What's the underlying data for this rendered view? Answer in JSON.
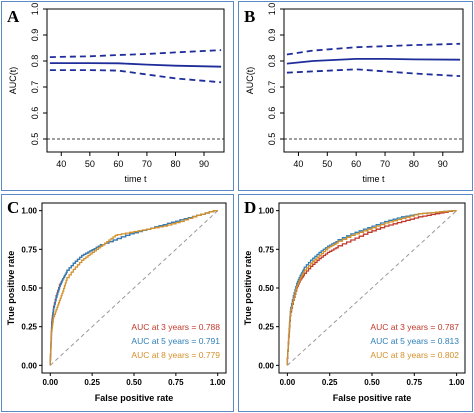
{
  "panels": [
    {
      "letter": "A",
      "type": "auc_time",
      "ylabel": "AUC(t)",
      "xlabel": "time t",
      "colors": {
        "line": "#1f2d9a",
        "ref": "#000000"
      }
    },
    {
      "letter": "B",
      "type": "auc_time",
      "ylabel": "AUC(t)",
      "xlabel": "time t",
      "colors": {
        "line": "#1f2d9a",
        "ref": "#000000"
      }
    },
    {
      "letter": "C",
      "type": "roc",
      "ylabel": "True positive rate",
      "xlabel": "False positive rate",
      "legend": [
        {
          "text": "AUC at 3 years = 0.788",
          "color": "#c0392b"
        },
        {
          "text": "AUC at 5 years = 0.791",
          "color": "#2e7fb8"
        },
        {
          "text": "AUC at 8 years = 0.779",
          "color": "#d4902a"
        }
      ]
    },
    {
      "letter": "D",
      "type": "roc",
      "ylabel": "True positive rate",
      "xlabel": "False positive rate",
      "legend": [
        {
          "text": "AUC at 3 years = 0.787",
          "color": "#c0392b"
        },
        {
          "text": "AUC at 5 years = 0.813",
          "color": "#2e7fb8"
        },
        {
          "text": "AUC at 8 years = 0.802",
          "color": "#d4902a"
        }
      ]
    }
  ],
  "chart_data": [
    {
      "type": "line",
      "panel": "A",
      "xlabel": "time t",
      "ylabel": "AUC(t)",
      "xlim": [
        35,
        97
      ],
      "ylim": [
        0.45,
        1.0
      ],
      "xticks": [
        40,
        50,
        60,
        70,
        80,
        90
      ],
      "yticks": [
        0.5,
        0.6,
        0.7,
        0.8,
        0.9,
        1.0
      ],
      "reference_line": 0.5,
      "series": [
        {
          "style": "solid",
          "x": [
            36,
            50,
            60,
            70,
            80,
            96
          ],
          "y": [
            0.792,
            0.792,
            0.791,
            0.786,
            0.782,
            0.778
          ]
        },
        {
          "style": "dashed",
          "x": [
            36,
            50,
            60,
            70,
            80,
            96
          ],
          "y": [
            0.815,
            0.818,
            0.823,
            0.827,
            0.833,
            0.842
          ]
        },
        {
          "style": "dashed",
          "x": [
            36,
            50,
            60,
            70,
            80,
            96
          ],
          "y": [
            0.765,
            0.765,
            0.763,
            0.748,
            0.733,
            0.718
          ]
        }
      ]
    },
    {
      "type": "line",
      "panel": "B",
      "xlabel": "time t",
      "ylabel": "AUC(t)",
      "xlim": [
        35,
        97
      ],
      "ylim": [
        0.45,
        1.0
      ],
      "xticks": [
        40,
        50,
        60,
        70,
        80,
        90
      ],
      "yticks": [
        0.5,
        0.6,
        0.7,
        0.8,
        0.9,
        1.0
      ],
      "reference_line": 0.5,
      "series": [
        {
          "style": "solid",
          "x": [
            36,
            45,
            60,
            70,
            80,
            96
          ],
          "y": [
            0.79,
            0.8,
            0.808,
            0.808,
            0.806,
            0.805
          ]
        },
        {
          "style": "dashed",
          "x": [
            36,
            45,
            60,
            70,
            80,
            96
          ],
          "y": [
            0.825,
            0.84,
            0.853,
            0.857,
            0.861,
            0.866
          ]
        },
        {
          "style": "dashed",
          "x": [
            36,
            45,
            60,
            70,
            80,
            96
          ],
          "y": [
            0.755,
            0.76,
            0.768,
            0.76,
            0.752,
            0.742
          ]
        }
      ]
    },
    {
      "type": "line",
      "panel": "C",
      "xlabel": "False positive rate",
      "ylabel": "True positive rate",
      "xlim": [
        0,
        1
      ],
      "ylim": [
        0,
        1
      ],
      "xticks": [
        0.0,
        0.25,
        0.5,
        0.75,
        1.0
      ],
      "yticks": [
        0.0,
        0.25,
        0.5,
        0.75,
        1.0
      ],
      "tick_labels": [
        "0.00",
        "0.25",
        "0.50",
        "0.75",
        "1.00"
      ],
      "diagonal": true,
      "series": [
        {
          "name": "AUC at 3 years = 0.788",
          "color": "#c0392b",
          "x": [
            0,
            0.005,
            0.01,
            0.02,
            0.04,
            0.06,
            0.08,
            0.1,
            0.15,
            0.2,
            0.25,
            0.3,
            0.4,
            0.5,
            0.6,
            0.7,
            0.8,
            0.9,
            1.0
          ],
          "y": [
            0,
            0.15,
            0.28,
            0.36,
            0.45,
            0.52,
            0.56,
            0.6,
            0.66,
            0.71,
            0.74,
            0.77,
            0.81,
            0.85,
            0.88,
            0.91,
            0.94,
            0.97,
            1.0
          ]
        },
        {
          "name": "AUC at 5 years = 0.791",
          "color": "#2e7fb8",
          "x": [
            0,
            0.005,
            0.01,
            0.02,
            0.04,
            0.06,
            0.08,
            0.1,
            0.15,
            0.2,
            0.25,
            0.3,
            0.4,
            0.5,
            0.6,
            0.7,
            0.8,
            0.9,
            1.0
          ],
          "y": [
            0,
            0.13,
            0.26,
            0.35,
            0.44,
            0.51,
            0.56,
            0.6,
            0.66,
            0.71,
            0.74,
            0.77,
            0.81,
            0.85,
            0.88,
            0.91,
            0.94,
            0.97,
            1.0
          ]
        },
        {
          "name": "AUC at 8 years = 0.779",
          "color": "#d4902a",
          "x": [
            0,
            0.01,
            0.02,
            0.04,
            0.06,
            0.08,
            0.1,
            0.15,
            0.2,
            0.25,
            0.3,
            0.35,
            0.4,
            0.5,
            0.6,
            0.7,
            0.8,
            0.9,
            1.0
          ],
          "y": [
            0,
            0.22,
            0.3,
            0.36,
            0.42,
            0.48,
            0.55,
            0.62,
            0.68,
            0.72,
            0.76,
            0.8,
            0.84,
            0.86,
            0.88,
            0.9,
            0.93,
            0.97,
            1.0
          ]
        }
      ],
      "legend": [
        "AUC at 3 years = 0.788",
        "AUC at 5 years = 0.791",
        "AUC at 8 years = 0.779"
      ]
    },
    {
      "type": "line",
      "panel": "D",
      "xlabel": "False positive rate",
      "ylabel": "True positive rate",
      "xlim": [
        0,
        1
      ],
      "ylim": [
        0,
        1
      ],
      "xticks": [
        0.0,
        0.25,
        0.5,
        0.75,
        1.0
      ],
      "yticks": [
        0.0,
        0.25,
        0.5,
        0.75,
        1.0
      ],
      "tick_labels": [
        "0.00",
        "0.25",
        "0.50",
        "0.75",
        "1.00"
      ],
      "diagonal": true,
      "series": [
        {
          "name": "AUC at 3 years = 0.787",
          "color": "#c0392b",
          "x": [
            0,
            0.01,
            0.02,
            0.04,
            0.06,
            0.08,
            0.1,
            0.15,
            0.2,
            0.25,
            0.3,
            0.4,
            0.5,
            0.6,
            0.7,
            0.8,
            0.9,
            1.0
          ],
          "y": [
            0,
            0.18,
            0.32,
            0.42,
            0.5,
            0.55,
            0.58,
            0.64,
            0.69,
            0.73,
            0.76,
            0.81,
            0.86,
            0.9,
            0.93,
            0.96,
            0.98,
            1.0
          ]
        },
        {
          "name": "AUC at 5 years = 0.813",
          "color": "#2e7fb8",
          "x": [
            0,
            0.01,
            0.02,
            0.04,
            0.06,
            0.08,
            0.1,
            0.15,
            0.2,
            0.25,
            0.3,
            0.4,
            0.5,
            0.6,
            0.7,
            0.8,
            0.9,
            1.0
          ],
          "y": [
            0,
            0.2,
            0.35,
            0.45,
            0.53,
            0.58,
            0.62,
            0.68,
            0.73,
            0.77,
            0.8,
            0.85,
            0.89,
            0.93,
            0.96,
            0.98,
            0.99,
            1.0
          ]
        },
        {
          "name": "AUC at 8 years = 0.802",
          "color": "#d4902a",
          "x": [
            0,
            0.01,
            0.02,
            0.04,
            0.06,
            0.08,
            0.1,
            0.15,
            0.2,
            0.25,
            0.3,
            0.4,
            0.5,
            0.6,
            0.7,
            0.8,
            0.9,
            1.0
          ],
          "y": [
            0,
            0.2,
            0.33,
            0.43,
            0.51,
            0.56,
            0.6,
            0.66,
            0.71,
            0.76,
            0.79,
            0.84,
            0.88,
            0.92,
            0.95,
            0.98,
            0.99,
            1.0
          ]
        }
      ],
      "legend": [
        "AUC at 3 years = 0.787",
        "AUC at 5 years = 0.813",
        "AUC at 8 years = 0.802"
      ]
    }
  ]
}
